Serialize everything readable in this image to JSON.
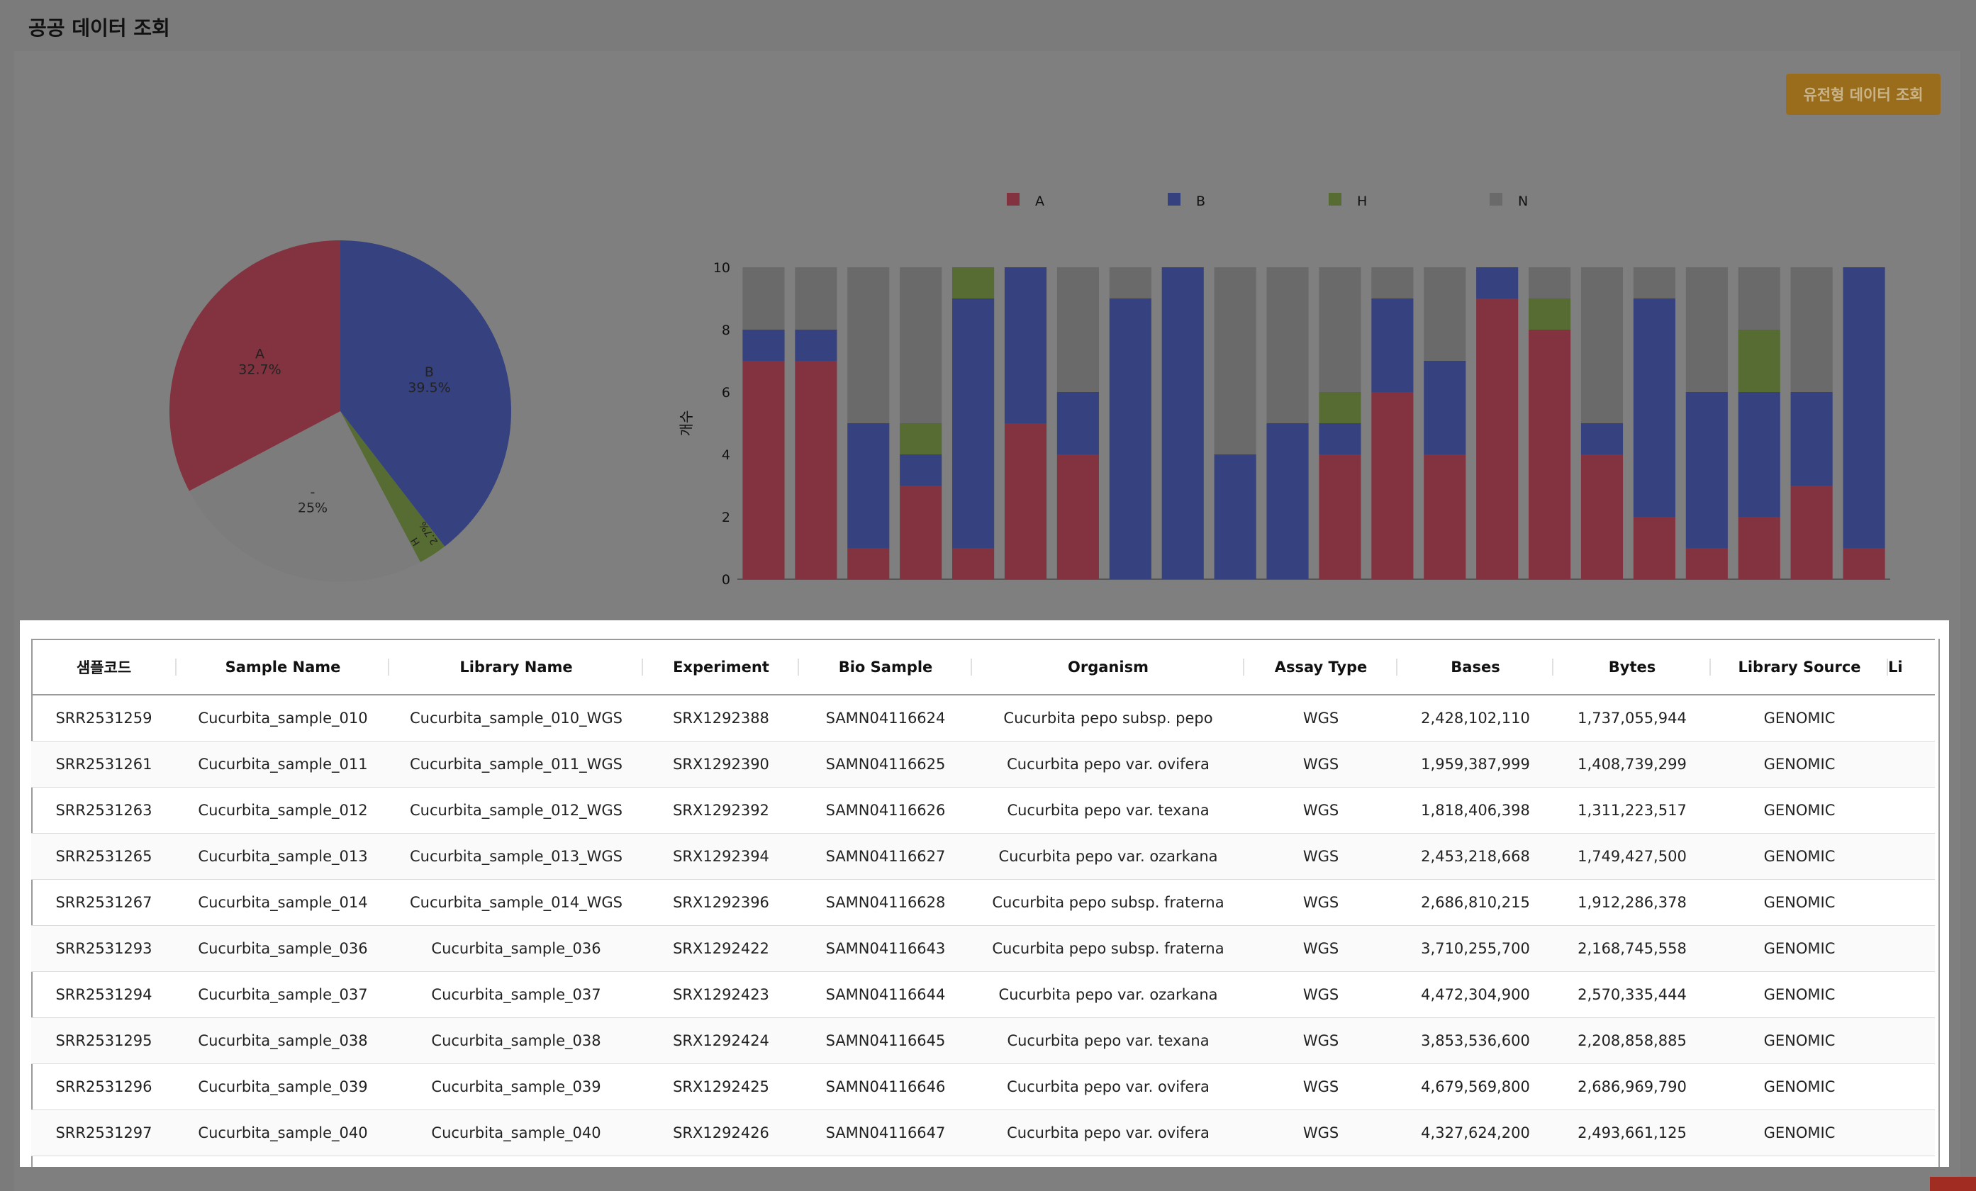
{
  "page_title": "공공 데이터 조회",
  "action_button": "유전형 데이터 조회",
  "colors": {
    "A": "#833340",
    "B": "#36417f",
    "H": "#566c33",
    "N": "#6a6a6a"
  },
  "chart_data": [
    {
      "type": "pie",
      "slices": [
        {
          "label": "A",
          "value": 32.7,
          "display": "32.7%"
        },
        {
          "label": "B",
          "value": 39.5,
          "display": "39.5%"
        },
        {
          "label": "H",
          "value": 2.7,
          "display": "2.7%"
        },
        {
          "label": "-",
          "value": 25,
          "display": "25%"
        }
      ]
    },
    {
      "type": "bar",
      "stacked": true,
      "legend": [
        "A",
        "B",
        "H",
        "N"
      ],
      "legend_position": "top",
      "ylabel": "개수",
      "ylim": [
        0,
        10
      ],
      "yticks": [
        0,
        2,
        4,
        6,
        8,
        10
      ],
      "series": [
        {
          "name": "A",
          "values": [
            7,
            7,
            1,
            3,
            1,
            5,
            4,
            0,
            0,
            0,
            0,
            4,
            6,
            4,
            9,
            8,
            4,
            2,
            1,
            2,
            3,
            1
          ]
        },
        {
          "name": "B",
          "values": [
            1,
            1,
            4,
            1,
            8,
            5,
            2,
            9,
            10,
            4,
            5,
            1,
            3,
            3,
            1,
            0,
            1,
            7,
            5,
            4,
            3,
            9
          ]
        },
        {
          "name": "H",
          "values": [
            0,
            0,
            0,
            1,
            1,
            0,
            0,
            0,
            0,
            0,
            0,
            1,
            0,
            0,
            0,
            1,
            0,
            0,
            0,
            2,
            0,
            0
          ]
        },
        {
          "name": "N",
          "values": [
            2,
            2,
            5,
            5,
            0,
            0,
            4,
            1,
            0,
            6,
            5,
            4,
            1,
            3,
            0,
            1,
            5,
            1,
            4,
            2,
            4,
            0
          ]
        }
      ]
    }
  ],
  "table": {
    "columns": [
      "샘플코드",
      "Sample Name",
      "Library Name",
      "Experiment",
      "Bio Sample",
      "Organism",
      "Assay Type",
      "Bases",
      "Bytes",
      "Library Source",
      "Li"
    ],
    "rows": [
      [
        "SRR2531259",
        "Cucurbita_sample_010",
        "Cucurbita_sample_010_WGS",
        "SRX1292388",
        "SAMN04116624",
        "Cucurbita pepo subsp. pepo",
        "WGS",
        "2,428,102,110",
        "1,737,055,944",
        "GENOMIC",
        ""
      ],
      [
        "SRR2531261",
        "Cucurbita_sample_011",
        "Cucurbita_sample_011_WGS",
        "SRX1292390",
        "SAMN04116625",
        "Cucurbita pepo var. ovifera",
        "WGS",
        "1,959,387,999",
        "1,408,739,299",
        "GENOMIC",
        ""
      ],
      [
        "SRR2531263",
        "Cucurbita_sample_012",
        "Cucurbita_sample_012_WGS",
        "SRX1292392",
        "SAMN04116626",
        "Cucurbita pepo var. texana",
        "WGS",
        "1,818,406,398",
        "1,311,223,517",
        "GENOMIC",
        ""
      ],
      [
        "SRR2531265",
        "Cucurbita_sample_013",
        "Cucurbita_sample_013_WGS",
        "SRX1292394",
        "SAMN04116627",
        "Cucurbita pepo var. ozarkana",
        "WGS",
        "2,453,218,668",
        "1,749,427,500",
        "GENOMIC",
        ""
      ],
      [
        "SRR2531267",
        "Cucurbita_sample_014",
        "Cucurbita_sample_014_WGS",
        "SRX1292396",
        "SAMN04116628",
        "Cucurbita pepo subsp. fraterna",
        "WGS",
        "2,686,810,215",
        "1,912,286,378",
        "GENOMIC",
        ""
      ],
      [
        "SRR2531293",
        "Cucurbita_sample_036",
        "Cucurbita_sample_036",
        "SRX1292422",
        "SAMN04116643",
        "Cucurbita pepo subsp. fraterna",
        "WGS",
        "3,710,255,700",
        "2,168,745,558",
        "GENOMIC",
        ""
      ],
      [
        "SRR2531294",
        "Cucurbita_sample_037",
        "Cucurbita_sample_037",
        "SRX1292423",
        "SAMN04116644",
        "Cucurbita pepo var. ozarkana",
        "WGS",
        "4,472,304,900",
        "2,570,335,444",
        "GENOMIC",
        ""
      ],
      [
        "SRR2531295",
        "Cucurbita_sample_038",
        "Cucurbita_sample_038",
        "SRX1292424",
        "SAMN04116645",
        "Cucurbita pepo var. texana",
        "WGS",
        "3,853,536,600",
        "2,208,858,885",
        "GENOMIC",
        ""
      ],
      [
        "SRR2531296",
        "Cucurbita_sample_039",
        "Cucurbita_sample_039",
        "SRX1292425",
        "SAMN04116646",
        "Cucurbita pepo var. ovifera",
        "WGS",
        "4,679,569,800",
        "2,686,969,790",
        "GENOMIC",
        ""
      ],
      [
        "SRR2531297",
        "Cucurbita_sample_040",
        "Cucurbita_sample_040",
        "SRX1292426",
        "SAMN04116647",
        "Cucurbita pepo var. ovifera",
        "WGS",
        "4,327,624,200",
        "2,493,661,125",
        "GENOMIC",
        ""
      ]
    ]
  }
}
